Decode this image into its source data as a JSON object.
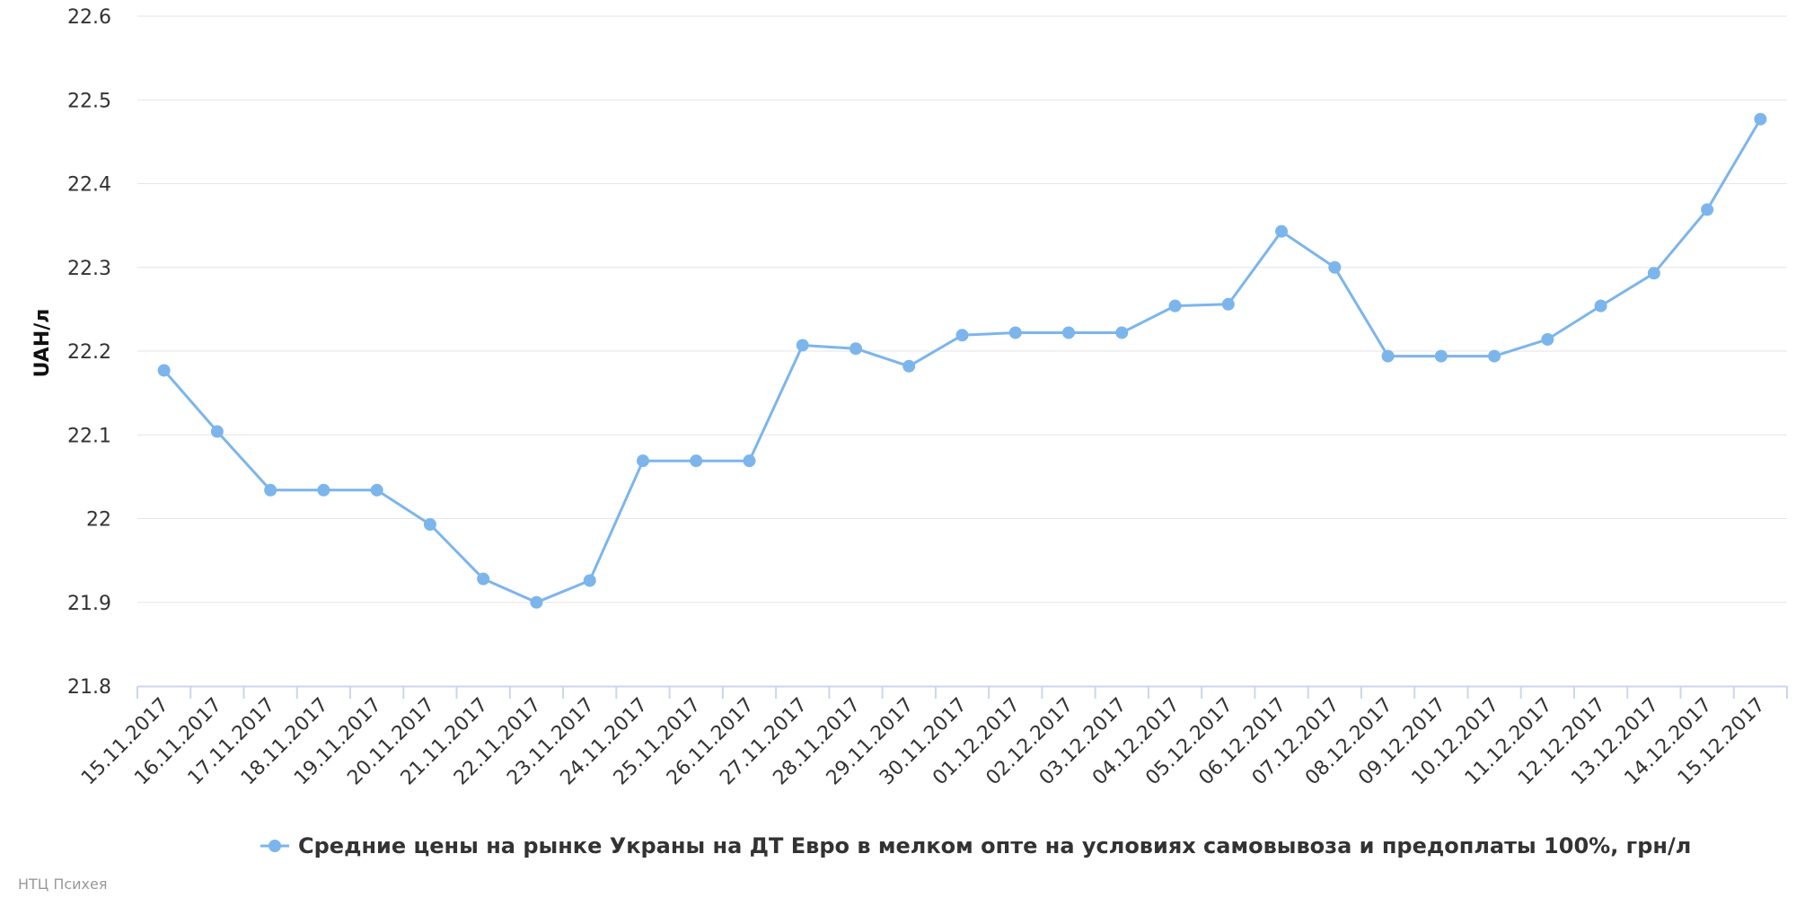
{
  "chart_data": {
    "type": "line",
    "ylabel": "UAH/л",
    "xlabel": "",
    "ylim": [
      21.8,
      22.6
    ],
    "yticks": [
      "21.8",
      "21.9",
      "22",
      "22.1",
      "22.2",
      "22.3",
      "22.4",
      "22.5",
      "22.6"
    ],
    "grid": true,
    "legend": "bottom-center",
    "categories": [
      "15.11.2017",
      "16.11.2017",
      "17.11.2017",
      "18.11.2017",
      "19.11.2017",
      "20.11.2017",
      "21.11.2017",
      "22.11.2017",
      "23.11.2017",
      "24.11.2017",
      "25.11.2017",
      "26.11.2017",
      "27.11.2017",
      "28.11.2017",
      "29.11.2017",
      "30.11.2017",
      "01.12.2017",
      "02.12.2017",
      "03.12.2017",
      "04.12.2017",
      "05.12.2017",
      "06.12.2017",
      "07.12.2017",
      "08.12.2017",
      "09.12.2017",
      "10.12.2017",
      "11.12.2017",
      "12.12.2017",
      "13.12.2017",
      "14.12.2017",
      "15.12.2017"
    ],
    "series": [
      {
        "name": "Средние цены на рынке Украны на ДТ Евро в мелком опте на условиях самовывоза и предоплаты 100%, грн/л",
        "color": "#7cb5ec",
        "values": [
          22.177,
          22.104,
          22.034,
          22.034,
          22.034,
          21.993,
          21.928,
          21.9,
          21.926,
          22.069,
          22.069,
          22.069,
          22.207,
          22.203,
          22.182,
          22.219,
          22.222,
          22.222,
          22.222,
          22.254,
          22.256,
          22.343,
          22.3,
          22.194,
          22.194,
          22.194,
          22.214,
          22.254,
          22.293,
          22.369,
          22.477
        ]
      }
    ]
  },
  "credits": "НТЦ Психея"
}
